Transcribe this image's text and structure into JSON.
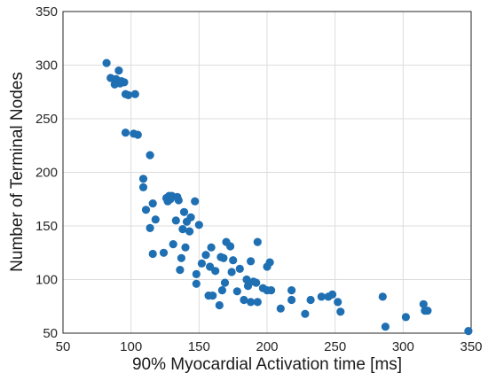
{
  "chart_data": {
    "type": "scatter",
    "title": "",
    "xlabel": "90% Myocardial Activation time [ms]",
    "ylabel": "Number of Terminal Nodes",
    "xlim": [
      50,
      350
    ],
    "ylim": [
      50,
      350
    ],
    "x_ticks": [
      "50",
      "100",
      "150",
      "200",
      "250",
      "300",
      "350"
    ],
    "y_ticks": [
      "50",
      "100",
      "150",
      "200",
      "250",
      "300",
      "350"
    ],
    "grid": true,
    "legend": "none",
    "marker_color": "#1f6fb3",
    "series": [
      {
        "points": [
          [
            82,
            302
          ],
          [
            85,
            288
          ],
          [
            88,
            282
          ],
          [
            89,
            287
          ],
          [
            90,
            285
          ],
          [
            91,
            295
          ],
          [
            92,
            283
          ],
          [
            93,
            285
          ],
          [
            95,
            284
          ],
          [
            96,
            273
          ],
          [
            98,
            272
          ],
          [
            103,
            273
          ],
          [
            96,
            237
          ],
          [
            102,
            236
          ],
          [
            105,
            235
          ],
          [
            114,
            216
          ],
          [
            109,
            194
          ],
          [
            109,
            186
          ],
          [
            111,
            165
          ],
          [
            116,
            171
          ],
          [
            118,
            156
          ],
          [
            114,
            148
          ],
          [
            116,
            124
          ],
          [
            124,
            125
          ],
          [
            126,
            176
          ],
          [
            127,
            173
          ],
          [
            128,
            178
          ],
          [
            129,
            175
          ],
          [
            130,
            178
          ],
          [
            131,
            133
          ],
          [
            133,
            155
          ],
          [
            134,
            177
          ],
          [
            135,
            174
          ],
          [
            136,
            109
          ],
          [
            137,
            120
          ],
          [
            138,
            147
          ],
          [
            139,
            163
          ],
          [
            140,
            130
          ],
          [
            141,
            154
          ],
          [
            143,
            145
          ],
          [
            144,
            158
          ],
          [
            147,
            173
          ],
          [
            148,
            105
          ],
          [
            148,
            96
          ],
          [
            150,
            151
          ],
          [
            152,
            115
          ],
          [
            155,
            123
          ],
          [
            157,
            85
          ],
          [
            158,
            112
          ],
          [
            159,
            130
          ],
          [
            160,
            85
          ],
          [
            162,
            108
          ],
          [
            165,
            76
          ],
          [
            166,
            121
          ],
          [
            167,
            90
          ],
          [
            168,
            120
          ],
          [
            169,
            97
          ],
          [
            170,
            135
          ],
          [
            173,
            131
          ],
          [
            174,
            107
          ],
          [
            175,
            118
          ],
          [
            178,
            89
          ],
          [
            180,
            110
          ],
          [
            183,
            81
          ],
          [
            185,
            100
          ],
          [
            186,
            94
          ],
          [
            188,
            117
          ],
          [
            188,
            79
          ],
          [
            190,
            98
          ],
          [
            192,
            97
          ],
          [
            193,
            79
          ],
          [
            193,
            135
          ],
          [
            197,
            92
          ],
          [
            200,
            112
          ],
          [
            200,
            90
          ],
          [
            202,
            116
          ],
          [
            203,
            90
          ],
          [
            210,
            73
          ],
          [
            218,
            90
          ],
          [
            218,
            81
          ],
          [
            228,
            68
          ],
          [
            232,
            81
          ],
          [
            240,
            84
          ],
          [
            245,
            84
          ],
          [
            248,
            86
          ],
          [
            252,
            79
          ],
          [
            254,
            70
          ],
          [
            285,
            84
          ],
          [
            287,
            56
          ],
          [
            302,
            65
          ],
          [
            315,
            77
          ],
          [
            316,
            71
          ],
          [
            318,
            71
          ],
          [
            348,
            52
          ]
        ]
      }
    ]
  }
}
